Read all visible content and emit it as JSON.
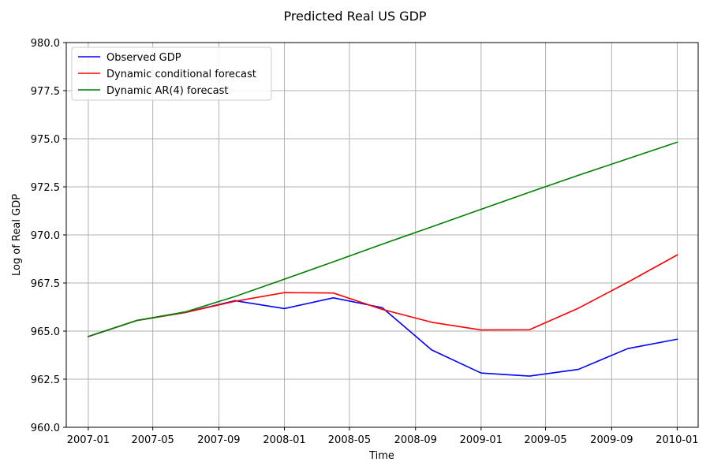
{
  "chart_data": {
    "type": "line",
    "title": "Predicted Real US GDP",
    "xlabel": "Time",
    "ylabel": "Log of Real GDP",
    "ylim": [
      960.0,
      980.0
    ],
    "xlim": [
      "2006-11-21",
      "2010-02-09"
    ],
    "grid": true,
    "legend_position": "top-left",
    "x": [
      "2007-01-01",
      "2007-04-01",
      "2007-07-01",
      "2007-10-01",
      "2008-01-01",
      "2008-04-01",
      "2008-07-01",
      "2008-10-01",
      "2009-01-01",
      "2009-04-01",
      "2009-07-01",
      "2009-10-01",
      "2010-01-01"
    ],
    "x_ticks": [
      "2007-01",
      "2007-05",
      "2007-09",
      "2008-01",
      "2008-05",
      "2008-09",
      "2009-01",
      "2009-05",
      "2009-09",
      "2010-01"
    ],
    "y_ticks": [
      "960.0",
      "962.5",
      "965.0",
      "967.5",
      "970.0",
      "972.5",
      "975.0",
      "977.5",
      "980.0"
    ],
    "series": [
      {
        "name": "Observed GDP",
        "color": "#0000ff",
        "values": [
          964.72,
          965.55,
          965.97,
          966.58,
          966.17,
          966.73,
          966.22,
          964.02,
          962.82,
          962.66,
          963.01,
          964.09,
          964.58
        ]
      },
      {
        "name": "Dynamic conditional forecast",
        "color": "#ff0000",
        "values": [
          964.72,
          965.55,
          965.97,
          966.55,
          967.0,
          966.98,
          966.13,
          965.46,
          965.06,
          965.07,
          966.19,
          967.54,
          968.96
        ]
      },
      {
        "name": "Dynamic AR(4) forecast",
        "color": "#008000",
        "values": [
          964.72,
          965.55,
          966.0,
          966.8,
          967.7,
          968.6,
          969.52,
          970.42,
          971.33,
          972.22,
          973.1,
          973.96,
          974.82
        ]
      }
    ]
  }
}
